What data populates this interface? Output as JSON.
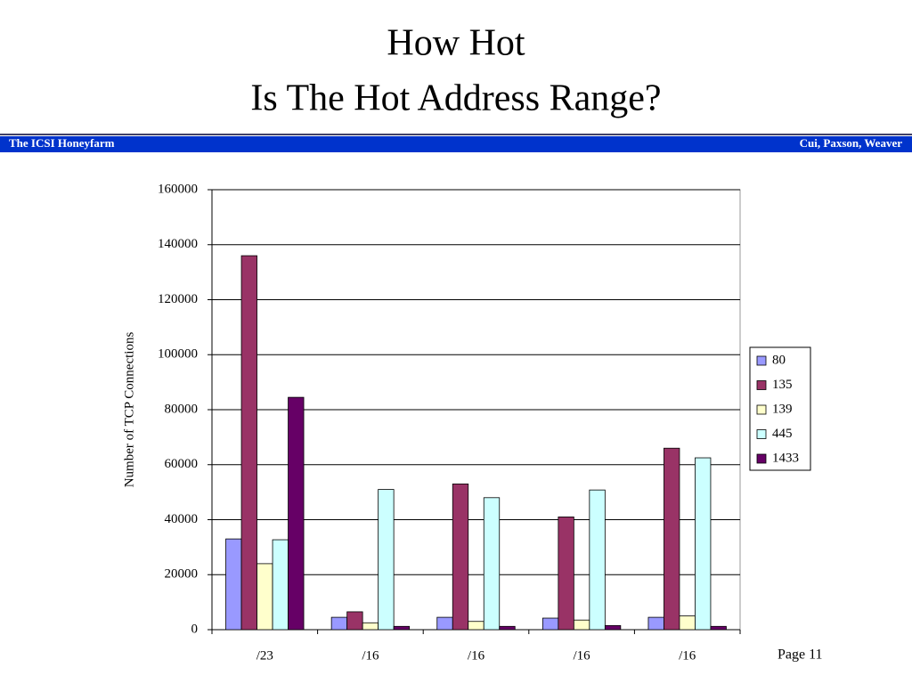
{
  "title": [
    "How Hot",
    "Is The Hot Address Range?"
  ],
  "banner": {
    "left": "The ICSI Honeyfarm",
    "right": "Cui, Paxson, Weaver"
  },
  "page": "Page 11",
  "chart_data": {
    "type": "bar",
    "y_label": "Number of TCP Connections",
    "categories": [
      "/23",
      "/16",
      "/16",
      "/16",
      "/16"
    ],
    "series": [
      {
        "name": "80",
        "color": "#9999ff",
        "values": [
          33000,
          4500,
          4500,
          4200,
          4500
        ]
      },
      {
        "name": "135",
        "color": "#993366",
        "values": [
          136000,
          6500,
          53000,
          41000,
          66000
        ]
      },
      {
        "name": "139",
        "color": "#ffffcc",
        "values": [
          24000,
          2500,
          3000,
          3500,
          5000
        ]
      },
      {
        "name": "445",
        "color": "#ccffff",
        "values": [
          32700,
          51000,
          48000,
          50800,
          62500
        ]
      },
      {
        "name": "1433",
        "color": "#660066",
        "values": [
          84500,
          1200,
          1200,
          1500,
          1200
        ]
      }
    ],
    "ylim": [
      0,
      160000
    ],
    "yticks": [
      0,
      20000,
      40000,
      60000,
      80000,
      100000,
      120000,
      140000,
      160000
    ],
    "grid": true
  }
}
